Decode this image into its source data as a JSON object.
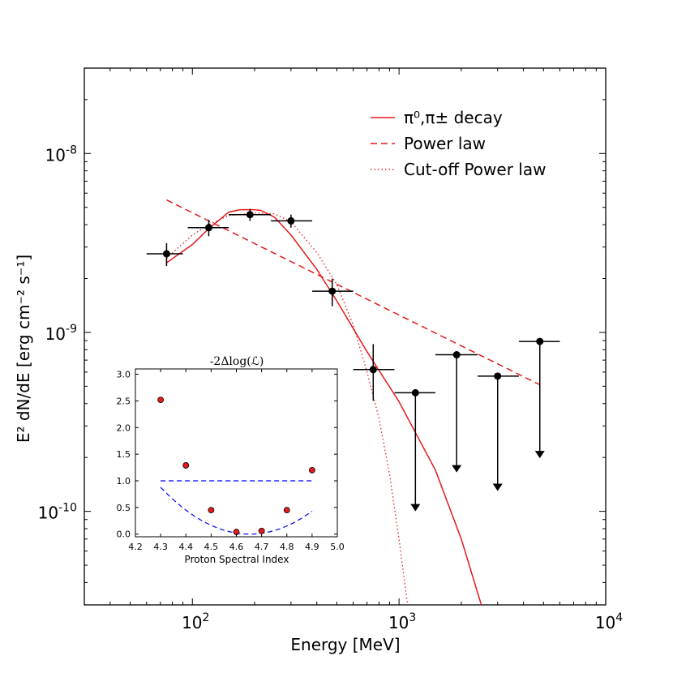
{
  "chart_data": [
    {
      "type": "scatter",
      "xlabel": "Energy [MeV]",
      "ylabel": "E² dN/dE [erg cm⁻² s⁻¹]",
      "xscale": "log",
      "yscale": "log",
      "xlim": [
        30,
        10000
      ],
      "ylim": [
        3e-11,
        3e-08
      ],
      "x_tick_labels": [
        {
          "value": 100,
          "base": "10",
          "exp": "2"
        },
        {
          "value": 1000,
          "base": "10",
          "exp": "3"
        },
        {
          "value": 10000,
          "base": "10",
          "exp": "4"
        }
      ],
      "y_tick_labels": [
        {
          "value": 1e-10,
          "base": "10",
          "exp": "-10"
        },
        {
          "value": 1e-09,
          "base": "10",
          "exp": "-9"
        },
        {
          "value": 1e-08,
          "base": "10",
          "exp": "-8"
        }
      ],
      "legend": {
        "placement": "top-right",
        "entries": [
          {
            "label": "π⁰,π± decay",
            "style": "solid",
            "color": "#e41a1c"
          },
          {
            "label": "Power law",
            "style": "dashed",
            "color": "#e41a1c"
          },
          {
            "label": "Cut-off Power law",
            "style": "dotted",
            "color": "#e41a1c"
          }
        ]
      },
      "data_points": [
        {
          "x": 75,
          "y": 2.75e-09,
          "xlo": 60,
          "xhi": 90,
          "ylo": 2.35e-09,
          "yhi": 3.15e-09
        },
        {
          "x": 120,
          "y": 3.85e-09,
          "xlo": 95,
          "xhi": 150,
          "ylo": 3.45e-09,
          "yhi": 4.25e-09
        },
        {
          "x": 190,
          "y": 4.55e-09,
          "xlo": 150,
          "xhi": 240,
          "ylo": 4.2e-09,
          "yhi": 4.9e-09
        },
        {
          "x": 300,
          "y": 4.2e-09,
          "xlo": 240,
          "xhi": 380,
          "ylo": 3.85e-09,
          "yhi": 4.55e-09
        },
        {
          "x": 475,
          "y": 1.7e-09,
          "xlo": 380,
          "xhi": 600,
          "ylo": 1.4e-09,
          "yhi": 2e-09
        }
      ],
      "upper_limits": [
        {
          "x": 750,
          "y": 6.2e-10,
          "xlo": 600,
          "xhi": 950,
          "ylo": 4.15e-10,
          "yhi": 8.6e-10
        },
        {
          "x": 1200,
          "y": 4.6e-10,
          "xlo": 950,
          "xhi": 1500,
          "arrow_to": 1e-10
        },
        {
          "x": 1900,
          "y": 7.5e-10,
          "xlo": 1500,
          "xhi": 2400,
          "arrow_to": 1.65e-10
        },
        {
          "x": 3000,
          "y": 5.7e-10,
          "xlo": 2400,
          "xhi": 3800,
          "arrow_to": 1.3e-10
        },
        {
          "x": 4800,
          "y": 8.9e-10,
          "xlo": 3800,
          "xhi": 6000,
          "arrow_to": 1.98e-10
        }
      ],
      "series": [
        {
          "name": "π⁰,π± decay",
          "style": "solid",
          "x": [
            75,
            100,
            120,
            150,
            170,
            200,
            215,
            250,
            300,
            400,
            500,
            700,
            1000,
            1500,
            2000,
            2500
          ],
          "y": [
            2.45e-09,
            3.1e-09,
            3.8e-09,
            4.7e-09,
            4.85e-09,
            4.85e-09,
            4.8e-09,
            4.4e-09,
            3.5e-09,
            2.25e-09,
            1.5e-09,
            7.8e-10,
            4.1e-10,
            1.7e-10,
            7e-11,
            3e-11
          ]
        },
        {
          "name": "Power law",
          "style": "dashed",
          "x": [
            75,
            4800
          ],
          "y": [
            5.5e-09,
            5.1e-10
          ]
        },
        {
          "name": "Cut-off Power law",
          "style": "dotted",
          "x": [
            75,
            100,
            120,
            150,
            200,
            250,
            300,
            400,
            500,
            600,
            700,
            800,
            900,
            1000,
            1100
          ],
          "y": [
            2.6e-09,
            3.5e-09,
            4e-09,
            4.5e-09,
            4.65e-09,
            4.6e-09,
            4.15e-09,
            2.8e-09,
            1.85e-09,
            1.1e-09,
            6e-10,
            3.3e-10,
            1.6e-10,
            7e-11,
            3e-11
          ]
        }
      ]
    },
    {
      "type": "scatter",
      "title": "-2Δlog(ℒ)",
      "xlabel": "Proton Spectral Index",
      "ylabel": "",
      "xlim": [
        4.2,
        5.0
      ],
      "ylim": [
        -0.05,
        3.1
      ],
      "x_ticks": [
        "4.2",
        "4.3",
        "4.4",
        "4.5",
        "4.6",
        "4.7",
        "4.8",
        "4.9",
        "5.0"
      ],
      "y_ticks": [
        "0.0",
        "0.5",
        "1.0",
        "1.5",
        "2.0",
        "2.5",
        "3.0"
      ],
      "points": {
        "x": [
          4.3,
          4.4,
          4.5,
          4.6,
          4.7,
          4.8,
          4.9
        ],
        "y": [
          2.52,
          1.29,
          0.45,
          0.04,
          0.06,
          0.45,
          1.2
        ]
      },
      "fit_curve": {
        "style": "dashed",
        "color": "#0000ff",
        "a": 7.05,
        "x0": 4.653,
        "c": 0.0
      },
      "threshold_line": {
        "y": 1.0,
        "x": [
          4.3,
          4.9
        ],
        "style": "dashed",
        "color": "#0000ff"
      }
    }
  ]
}
